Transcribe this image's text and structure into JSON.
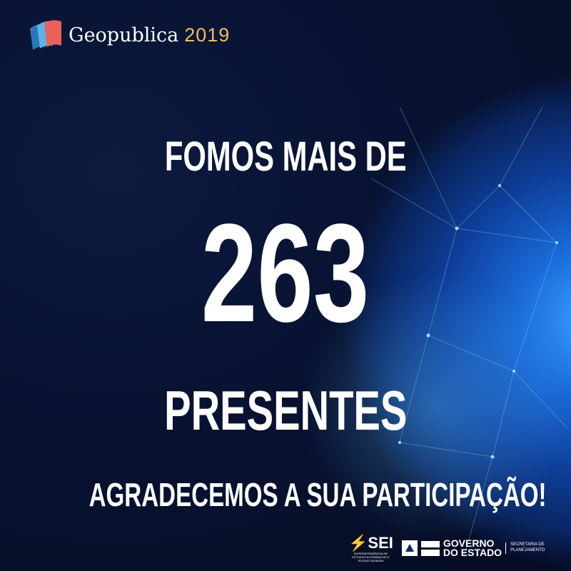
{
  "header": {
    "brand": "Geopublica",
    "year": "2019"
  },
  "main": {
    "line1": "FOMOS MAIS DE",
    "count": "263",
    "line3": "PRESENTES",
    "thanks": "AGRADECEMOS A SUA PARTICIPAÇÃO!"
  },
  "footer": {
    "sei_name": "SEI",
    "sei_sub": "SUPERINTENDÊNCIA DE ESTUDOS ECONÔMICOS E SOCIAIS DA BAHIA",
    "gov_line1": "GOVERNO",
    "gov_line2": "DO ESTADO",
    "sec_line1": "SECRETARIA DE",
    "sec_line2": "PLANEJAMENTO"
  },
  "colors": {
    "background": "#081231",
    "globe": "#1a6ad8",
    "year": "#e8c15a"
  }
}
